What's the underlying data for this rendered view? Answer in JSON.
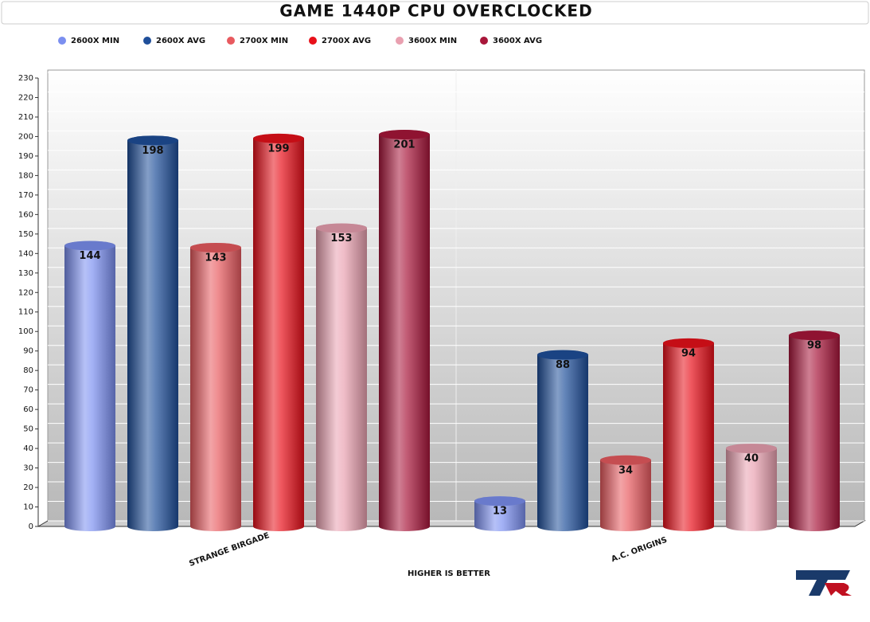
{
  "chart_data": {
    "type": "bar",
    "title": "GAME 1440P CPU OVERCLOCKED",
    "x_label": "HIGHER IS BETTER",
    "categories": [
      "STRANGE BIRGADE",
      "A.C. ORIGINS"
    ],
    "series": [
      {
        "name": "2600X MIN",
        "color": "#7b8ff0",
        "values": [
          144,
          13
        ]
      },
      {
        "name": "2600X AVG",
        "color": "#1f4f9a",
        "values": [
          198,
          88
        ]
      },
      {
        "name": "2700X MIN",
        "color": "#e85a5f",
        "values": [
          143,
          34
        ]
      },
      {
        "name": "2700X AVG",
        "color": "#e8101a",
        "values": [
          199,
          94
        ]
      },
      {
        "name": "3600X MIN",
        "color": "#e9a0b0",
        "values": [
          153,
          40
        ]
      },
      {
        "name": "3600X AVG",
        "color": "#a8163a",
        "values": [
          201,
          98
        ]
      }
    ],
    "ylim": [
      0,
      230
    ],
    "yticks": [
      0,
      10,
      20,
      30,
      40,
      50,
      60,
      70,
      80,
      90,
      100,
      110,
      120,
      130,
      140,
      150,
      160,
      170,
      180,
      190,
      200,
      210,
      220,
      230
    ],
    "grid": true
  }
}
